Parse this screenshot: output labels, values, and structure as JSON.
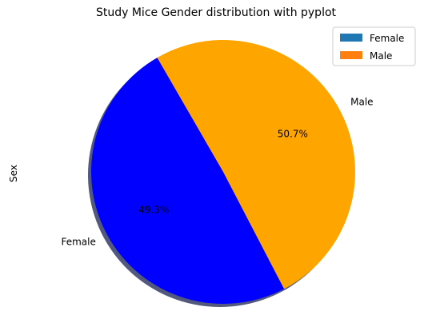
{
  "chart_data": {
    "type": "pie",
    "title": "Study Mice Gender distribution with pyplot",
    "ylabel": "Sex",
    "categories": [
      "Female",
      "Male"
    ],
    "values": [
      49.3,
      50.7
    ],
    "value_labels": [
      "49.3%",
      "50.7%"
    ],
    "slice_colors": [
      "#0000ff",
      "#ffa500"
    ],
    "legend": {
      "position": "top-right",
      "entries": [
        {
          "label": "Female",
          "color": "#1f77b4"
        },
        {
          "label": "Male",
          "color": "#ff7f0e"
        }
      ]
    },
    "shadow": true,
    "startangle_deg": 120
  }
}
